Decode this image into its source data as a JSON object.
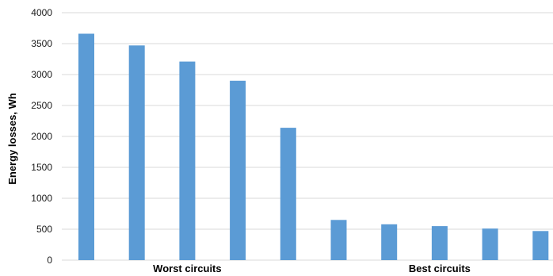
{
  "chart_data": {
    "type": "bar",
    "title": "",
    "xlabel": "",
    "ylabel": "Energy losses, Wh",
    "ylim": [
      0,
      4000
    ],
    "yticks": [
      0,
      500,
      1000,
      1500,
      2000,
      2500,
      3000,
      3500,
      4000
    ],
    "grid": true,
    "bar_color": "#5b9bd5",
    "grid_color": "#d9d9d9",
    "values": [
      3660,
      3470,
      3210,
      2900,
      2140,
      650,
      580,
      550,
      510,
      470
    ],
    "groups": [
      {
        "label": "Worst circuits",
        "range": [
          0,
          4
        ]
      },
      {
        "label": "Best circuits",
        "range": [
          5,
          9
        ]
      }
    ]
  }
}
